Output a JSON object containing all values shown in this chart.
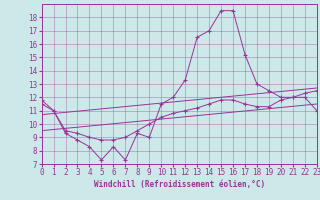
{
  "xlabel": "Windchill (Refroidissement éolien,°C)",
  "background_color": "#cce8e8",
  "line_color": "#993399",
  "x_ticks": [
    0,
    1,
    2,
    3,
    4,
    5,
    6,
    7,
    8,
    9,
    10,
    11,
    12,
    13,
    14,
    15,
    16,
    17,
    18,
    19,
    20,
    21,
    22,
    23
  ],
  "y_ticks": [
    7,
    8,
    9,
    10,
    11,
    12,
    13,
    14,
    15,
    16,
    17,
    18
  ],
  "ylim": [
    7,
    19
  ],
  "xlim": [
    0,
    23
  ],
  "series": [
    {
      "x": [
        0,
        1,
        2,
        3,
        4,
        5,
        6,
        7,
        8,
        9,
        10,
        11,
        12,
        13,
        14,
        15,
        16,
        17,
        18,
        19,
        20,
        21,
        22,
        23
      ],
      "y": [
        11.8,
        11.0,
        9.3,
        8.8,
        8.3,
        7.3,
        8.3,
        7.3,
        9.3,
        9.0,
        11.5,
        12.0,
        13.3,
        16.5,
        17.0,
        18.5,
        18.5,
        15.2,
        13.0,
        12.5,
        12.0,
        12.0,
        12.3,
        12.5
      ],
      "marker": true
    },
    {
      "x": [
        0,
        1,
        2,
        3,
        4,
        5,
        6,
        7,
        8,
        9,
        10,
        11,
        12,
        13,
        14,
        15,
        16,
        17,
        18,
        19,
        20,
        21,
        22,
        23
      ],
      "y": [
        11.5,
        11.0,
        9.5,
        9.3,
        9.0,
        8.8,
        8.8,
        9.0,
        9.5,
        10.0,
        10.5,
        10.8,
        11.0,
        11.2,
        11.5,
        11.8,
        11.8,
        11.5,
        11.3,
        11.3,
        11.8,
        12.0,
        12.0,
        11.0
      ],
      "marker": true
    },
    {
      "x": [
        0,
        23
      ],
      "y": [
        9.5,
        11.5
      ],
      "marker": false
    },
    {
      "x": [
        0,
        23
      ],
      "y": [
        10.7,
        12.7
      ],
      "marker": false
    }
  ],
  "tick_fontsize": 5.5,
  "xlabel_fontsize": 5.5,
  "linewidth": 0.7,
  "markersize": 3.5,
  "grid_alpha": 0.6,
  "grid_linewidth": 0.4
}
